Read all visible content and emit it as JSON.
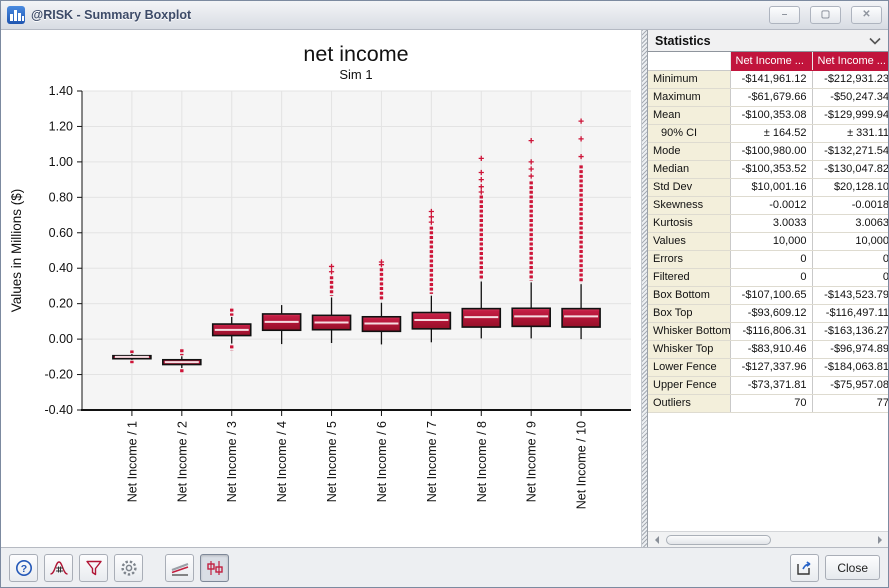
{
  "window": {
    "title": "@RISK - Summary Boxplot",
    "controls": {
      "minimize": "–",
      "maximize": "▢",
      "close": "✕"
    }
  },
  "chart_data": {
    "type": "boxplot",
    "title": "net income",
    "subtitle": "Sim 1",
    "ylabel": "Values in Millions ($)",
    "ylim": [
      -0.4,
      1.4
    ],
    "ytick_step": 0.2,
    "grid": true,
    "box_color": "#b5173a",
    "outlier_color": "#ce1438",
    "categories": [
      "Net Income / 1",
      "Net Income / 2",
      "Net Income / 3",
      "Net Income / 4",
      "Net Income / 5",
      "Net Income / 6",
      "Net Income / 7",
      "Net Income / 8",
      "Net Income / 9",
      "Net Income / 10"
    ],
    "series": [
      {
        "name": "Net Income / 1",
        "whisker_low": -0.117,
        "q1": -0.1071,
        "median": -0.1004,
        "q3": -0.0936,
        "whisker_high": -0.0839,
        "outliers_low": {
          "from": -0.122,
          "to": -0.136,
          "sparse": []
        },
        "outliers_high": {
          "from": -0.079,
          "to": -0.064,
          "sparse": []
        }
      },
      {
        "name": "Net Income / 2",
        "whisker_low": -0.1631,
        "q1": -0.1435,
        "median": -0.13,
        "q3": -0.1165,
        "whisker_high": -0.097,
        "outliers_low": {
          "from": -0.17,
          "to": -0.196,
          "sparse": []
        },
        "outliers_high": {
          "from": -0.091,
          "to": -0.057,
          "sparse": []
        }
      },
      {
        "name": "Net Income / 3",
        "whisker_low": -0.025,
        "q1": 0.02,
        "median": 0.052,
        "q3": 0.085,
        "whisker_high": 0.125,
        "outliers_low": {
          "from": -0.035,
          "to": -0.063,
          "sparse": []
        },
        "outliers_high": {
          "from": 0.132,
          "to": 0.172,
          "sparse": []
        }
      },
      {
        "name": "Net Income / 4",
        "whisker_low": -0.028,
        "q1": 0.05,
        "median": 0.097,
        "q3": 0.142,
        "whisker_high": 0.192,
        "outliers_low": null,
        "outliers_high": null
      },
      {
        "name": "Net Income / 5",
        "whisker_low": -0.022,
        "q1": 0.053,
        "median": 0.094,
        "q3": 0.134,
        "whisker_high": 0.235,
        "outliers_low": null,
        "outliers_high": {
          "from": 0.245,
          "to": 0.355,
          "sparse": [
            0.38,
            0.41
          ]
        }
      },
      {
        "name": "Net Income / 6",
        "whisker_low": -0.03,
        "q1": 0.044,
        "median": 0.088,
        "q3": 0.126,
        "whisker_high": 0.205,
        "outliers_low": null,
        "outliers_high": {
          "from": 0.215,
          "to": 0.4,
          "sparse": [
            0.42,
            0.435
          ]
        }
      },
      {
        "name": "Net Income / 7",
        "whisker_low": -0.018,
        "q1": 0.058,
        "median": 0.108,
        "q3": 0.15,
        "whisker_high": 0.245,
        "outliers_low": null,
        "outliers_high": {
          "from": 0.255,
          "to": 0.635,
          "sparse": [
            0.66,
            0.69,
            0.72
          ]
        }
      },
      {
        "name": "Net Income / 8",
        "whisker_low": 0.004,
        "q1": 0.068,
        "median": 0.124,
        "q3": 0.172,
        "whisker_high": 0.325,
        "outliers_low": null,
        "outliers_high": {
          "from": 0.335,
          "to": 0.81,
          "sparse": [
            0.83,
            0.86,
            0.9,
            0.94,
            1.02
          ]
        }
      },
      {
        "name": "Net Income / 9",
        "whisker_low": 0.004,
        "q1": 0.072,
        "median": 0.128,
        "q3": 0.174,
        "whisker_high": 0.32,
        "outliers_low": null,
        "outliers_high": {
          "from": 0.33,
          "to": 0.89,
          "sparse": [
            0.92,
            0.96,
            1.0,
            1.12
          ]
        }
      },
      {
        "name": "Net Income / 10",
        "whisker_low": 0.0,
        "q1": 0.068,
        "median": 0.128,
        "q3": 0.172,
        "whisker_high": 0.31,
        "outliers_low": null,
        "outliers_high": {
          "from": 0.32,
          "to": 0.98,
          "sparse": [
            1.03,
            1.13,
            1.23
          ]
        }
      }
    ]
  },
  "stats_panel": {
    "title": "Statistics",
    "columns": [
      "",
      "Net Income ...",
      "Net Income ..."
    ],
    "header_color": "#c1143c",
    "rows": [
      {
        "label": "Minimum",
        "indent": false,
        "v1": "-$141,961.12",
        "v2": "-$212,931.23"
      },
      {
        "label": "Maximum",
        "indent": false,
        "v1": "-$61,679.66",
        "v2": "-$50,247.34"
      },
      {
        "label": "Mean",
        "indent": false,
        "v1": "-$100,353.08",
        "v2": "-$129,999.94"
      },
      {
        "label": "90% CI",
        "indent": true,
        "v1": "± 164.52",
        "v2": "± 331.11"
      },
      {
        "label": "Mode",
        "indent": false,
        "v1": "-$100,980.00",
        "v2": "-$132,271.54"
      },
      {
        "label": "Median",
        "indent": false,
        "v1": "-$100,353.52",
        "v2": "-$130,047.82"
      },
      {
        "label": "Std Dev",
        "indent": false,
        "v1": "$10,001.16",
        "v2": "$20,128.10"
      },
      {
        "label": "Skewness",
        "indent": false,
        "v1": "-0.0012",
        "v2": "-0.0018"
      },
      {
        "label": "Kurtosis",
        "indent": false,
        "v1": "3.0033",
        "v2": "3.0063"
      },
      {
        "label": "Values",
        "indent": false,
        "v1": "10,000",
        "v2": "10,000"
      },
      {
        "label": "Errors",
        "indent": false,
        "v1": "0",
        "v2": "0"
      },
      {
        "label": "Filtered",
        "indent": false,
        "v1": "0",
        "v2": "0"
      },
      {
        "label": "Box Bottom",
        "indent": false,
        "v1": "-$107,100.65",
        "v2": "-$143,523.79"
      },
      {
        "label": "Box Top",
        "indent": false,
        "v1": "-$93,609.12",
        "v2": "-$116,497.11"
      },
      {
        "label": "Whisker Bottom",
        "indent": false,
        "v1": "-$116,806.31",
        "v2": "-$163,136.27"
      },
      {
        "label": "Whisker Top",
        "indent": false,
        "v1": "-$83,910.46",
        "v2": "-$96,974.89"
      },
      {
        "label": "Lower Fence",
        "indent": false,
        "v1": "-$127,337.96",
        "v2": "-$184,063.81"
      },
      {
        "label": "Upper Fence",
        "indent": false,
        "v1": "-$73,371.81",
        "v2": "-$75,957.08"
      },
      {
        "label": "Outliers",
        "indent": false,
        "v1": "70",
        "v2": "77"
      }
    ]
  },
  "toolbar": {
    "icons": [
      "help-icon",
      "bell-curve-icon",
      "funnel-icon",
      "gear-icon",
      "trend-lines-icon",
      "boxplot-icon",
      "export-icon"
    ],
    "selected_icon": "boxplot-icon",
    "close_label": "Close"
  }
}
